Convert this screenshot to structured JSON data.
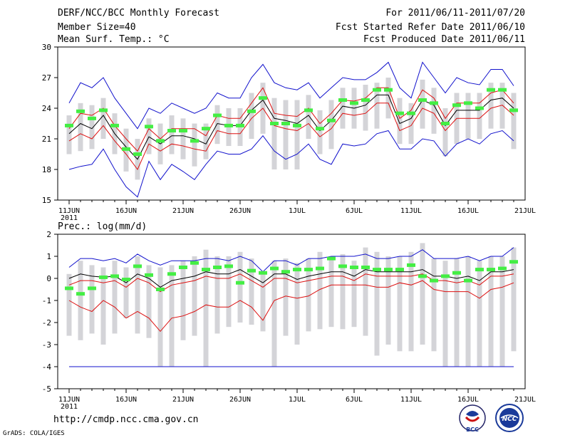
{
  "header": {
    "title": "DERF/NCC/BCC Monthly Forecast",
    "member_size": "Member Size=40",
    "variable": "Mean Surf. Temp.: °C",
    "period": "For 2011/06/11-2011/07/20",
    "fcst_started": "Fcst Started Refer Date 2011/06/10",
    "fcst_produced": "Fcst Produced Date 2011/06/11"
  },
  "colors": {
    "box": "#d4d4d8",
    "mean": "#000000",
    "spread": "#dd1111",
    "extreme": "#1111cc",
    "obs": "#44ee44",
    "floor": "#2222aa"
  },
  "chart_data": [
    {
      "type": "box",
      "title": "Mean Surf. Temp.: °C",
      "ylim": [
        15,
        30
      ],
      "yticks": [
        15,
        18,
        21,
        24,
        27,
        30
      ],
      "xtick_labels": [
        "11JUN",
        "16JUN",
        "21JUN",
        "26JUN",
        "1JUL",
        "6JUL",
        "11JUL",
        "16JUL",
        "21JUL"
      ],
      "year_label": "2011",
      "mean": [
        21.5,
        22.5,
        22.0,
        23.3,
        21.5,
        20.2,
        19.0,
        21.2,
        20.5,
        21.3,
        21.3,
        21.0,
        20.5,
        22.5,
        22.3,
        22.3,
        23.8,
        24.8,
        23.0,
        22.8,
        22.5,
        23.3,
        21.8,
        22.8,
        24.2,
        24.0,
        24.3,
        25.3,
        25.3,
        22.5,
        23.0,
        24.8,
        24.3,
        22.3,
        23.8,
        23.8,
        23.8,
        24.8,
        25.0,
        24.0
      ],
      "upper": [
        22.0,
        23.5,
        23.3,
        24.0,
        22.3,
        21.0,
        19.8,
        22.0,
        21.0,
        22.0,
        22.0,
        22.0,
        21.3,
        23.3,
        23.0,
        23.0,
        24.5,
        26.0,
        23.5,
        23.3,
        23.2,
        24.0,
        22.5,
        23.5,
        24.8,
        24.7,
        25.0,
        26.0,
        26.0,
        23.0,
        23.8,
        25.8,
        25.0,
        23.0,
        24.5,
        24.5,
        24.5,
        25.5,
        25.8,
        24.5
      ],
      "lower": [
        20.8,
        21.5,
        21.0,
        22.3,
        20.8,
        19.5,
        18.0,
        20.5,
        19.8,
        20.5,
        20.3,
        20.0,
        19.8,
        21.8,
        21.5,
        21.5,
        23.0,
        24.0,
        22.3,
        22.0,
        21.8,
        22.5,
        21.2,
        22.0,
        23.5,
        23.3,
        23.5,
        24.5,
        24.5,
        21.8,
        22.3,
        24.0,
        23.5,
        21.8,
        23.0,
        23.0,
        23.0,
        24.0,
        24.3,
        23.3
      ],
      "max": [
        24.5,
        26.5,
        26.0,
        27.0,
        25.0,
        23.5,
        22.0,
        24.0,
        23.5,
        24.5,
        24.0,
        23.5,
        24.0,
        25.5,
        25.0,
        25.0,
        27.0,
        28.3,
        26.5,
        26.0,
        25.8,
        26.5,
        25.0,
        26.0,
        27.0,
        26.8,
        26.8,
        27.5,
        28.5,
        26.0,
        25.0,
        28.5,
        27.0,
        25.5,
        27.0,
        26.5,
        26.3,
        27.8,
        27.8,
        26.2
      ],
      "min": [
        18.0,
        18.3,
        18.5,
        20.0,
        18.0,
        16.3,
        15.3,
        18.8,
        17.0,
        18.5,
        17.8,
        17.0,
        18.5,
        19.8,
        19.5,
        19.5,
        20.0,
        21.3,
        19.8,
        19.0,
        19.5,
        20.5,
        19.0,
        18.5,
        20.5,
        20.3,
        20.5,
        21.5,
        21.8,
        20.0,
        20.0,
        21.0,
        20.8,
        19.3,
        20.5,
        21.0,
        20.5,
        21.5,
        21.8,
        20.8
      ],
      "box_top": [
        23.3,
        24.5,
        24.3,
        25.0,
        23.5,
        22.0,
        21.0,
        23.0,
        22.5,
        23.3,
        23.0,
        22.5,
        22.5,
        24.3,
        24.0,
        24.0,
        25.5,
        26.5,
        25.0,
        24.8,
        24.8,
        25.3,
        23.8,
        24.8,
        26.0,
        26.0,
        26.3,
        26.5,
        27.0,
        25.0,
        24.5,
        26.8,
        26.0,
        24.0,
        25.5,
        25.5,
        25.5,
        26.5,
        26.5,
        25.5
      ],
      "box_bot": [
        19.5,
        19.8,
        20.0,
        21.0,
        19.5,
        17.8,
        17.0,
        19.5,
        18.5,
        19.5,
        19.0,
        18.3,
        19.0,
        20.5,
        20.3,
        20.3,
        21.0,
        21.5,
        18.0,
        18.0,
        18.0,
        21.0,
        19.5,
        20.0,
        22.0,
        22.0,
        21.8,
        22.0,
        23.0,
        20.5,
        20.5,
        22.0,
        21.5,
        19.3,
        20.5,
        21.0,
        21.0,
        22.0,
        22.0,
        20.0
      ],
      "obs": [
        22.3,
        23.7,
        23.0,
        23.8,
        22.3,
        20.0,
        19.5,
        22.2,
        20.8,
        21.8,
        21.8,
        20.8,
        22.0,
        23.3,
        22.3,
        22.3,
        23.7,
        25.0,
        22.5,
        22.5,
        22.3,
        23.8,
        22.0,
        22.8,
        24.8,
        24.5,
        24.8,
        25.8,
        25.8,
        23.5,
        23.5,
        24.8,
        24.5,
        22.5,
        24.3,
        24.5,
        24.0,
        25.8,
        25.8,
        23.8
      ]
    },
    {
      "type": "box",
      "title": "Prec.: log(mm/d)",
      "ylim": [
        -5,
        2
      ],
      "yticks": [
        -5,
        -4,
        -3,
        -2,
        -1,
        0,
        1,
        2
      ],
      "xtick_labels": [
        "11JUN",
        "16JUN",
        "21JUN",
        "26JUN",
        "1JUL",
        "6JUL",
        "11JUL",
        "16JUL",
        "21JUL"
      ],
      "year_label": "2011",
      "mean": [
        0.0,
        0.2,
        0.1,
        0.05,
        0.1,
        -0.2,
        0.2,
        0.0,
        -0.4,
        -0.1,
        0.0,
        0.1,
        0.3,
        0.2,
        0.2,
        0.4,
        0.1,
        -0.2,
        0.2,
        0.2,
        -0.05,
        0.1,
        0.2,
        0.3,
        0.3,
        0.1,
        0.4,
        0.3,
        0.3,
        0.3,
        0.3,
        0.4,
        0.1,
        0.1,
        0.0,
        0.1,
        -0.1,
        0.3,
        0.3,
        0.4
      ],
      "upper": [
        -0.3,
        -0.1,
        -0.1,
        -0.2,
        -0.1,
        -0.4,
        0.0,
        -0.2,
        -0.6,
        -0.3,
        -0.2,
        -0.1,
        0.1,
        0.0,
        0.0,
        0.2,
        -0.1,
        -0.4,
        0.0,
        0.0,
        -0.2,
        -0.1,
        0.0,
        0.1,
        0.1,
        -0.1,
        0.2,
        0.1,
        0.1,
        0.1,
        0.1,
        0.2,
        -0.1,
        -0.1,
        -0.2,
        -0.1,
        -0.3,
        0.1,
        0.1,
        0.2
      ],
      "lower": [
        -1.0,
        -1.3,
        -1.5,
        -1.0,
        -1.3,
        -1.8,
        -1.5,
        -1.8,
        -2.4,
        -1.8,
        -1.7,
        -1.5,
        -1.2,
        -1.3,
        -1.3,
        -1.0,
        -1.3,
        -1.9,
        -1.0,
        -0.8,
        -0.9,
        -0.8,
        -0.5,
        -0.3,
        -0.3,
        -0.3,
        -0.3,
        -0.4,
        -0.4,
        -0.2,
        -0.3,
        -0.1,
        -0.5,
        -0.6,
        -0.6,
        -0.6,
        -0.9,
        -0.5,
        -0.4,
        -0.2
      ],
      "max": [
        0.5,
        0.9,
        0.9,
        0.8,
        0.9,
        0.7,
        1.1,
        0.8,
        0.6,
        0.8,
        0.8,
        0.8,
        0.9,
        0.9,
        0.8,
        1.0,
        0.8,
        0.3,
        0.8,
        0.8,
        0.6,
        0.9,
        0.9,
        1.0,
        1.0,
        1.0,
        1.1,
        0.9,
        0.9,
        1.0,
        1.0,
        1.3,
        0.9,
        0.9,
        0.9,
        1.0,
        0.8,
        1.0,
        1.0,
        1.4
      ],
      "min": [
        -4.0,
        -4.0,
        -4.0,
        -4.0,
        -4.0,
        -4.0,
        -4.0,
        -4.0,
        -4.0,
        -4.0,
        -4.0,
        -4.0,
        -4.0,
        -4.0,
        -4.0,
        -4.0,
        -4.0,
        -4.0,
        -4.0,
        -4.0,
        -4.0,
        -4.0,
        -4.0,
        -4.0,
        -4.0,
        -4.0,
        -4.0,
        -4.0,
        -4.0,
        -4.0,
        -4.0,
        -4.0,
        -4.0,
        -4.0,
        -4.0,
        -4.0,
        -4.0,
        -4.0,
        -4.0,
        -4.0
      ],
      "box_top": [
        0.2,
        0.8,
        0.6,
        0.5,
        0.8,
        0.5,
        1.0,
        0.6,
        0.5,
        0.6,
        0.8,
        1.0,
        1.3,
        1.0,
        1.0,
        1.2,
        0.9,
        0.2,
        0.8,
        0.9,
        0.7,
        0.9,
        1.2,
        1.0,
        1.1,
        0.8,
        1.4,
        1.2,
        1.0,
        1.0,
        1.2,
        1.6,
        0.9,
        0.8,
        0.9,
        1.0,
        0.8,
        1.0,
        1.0,
        1.4
      ],
      "box_bot": [
        -2.6,
        -2.8,
        -2.5,
        -3.0,
        -2.5,
        -1.8,
        -2.5,
        -2.7,
        -4.0,
        -4.0,
        -2.8,
        -2.6,
        -4.0,
        -2.5,
        -2.2,
        -2.0,
        -2.1,
        -2.4,
        -4.0,
        -2.6,
        -3.0,
        -2.4,
        -2.3,
        -2.2,
        -2.3,
        -2.2,
        -2.6,
        -3.5,
        -3.0,
        -3.3,
        -3.3,
        -3.0,
        -3.3,
        -4.0,
        -4.0,
        -4.0,
        -4.0,
        -4.0,
        -4.0,
        -3.3
      ],
      "obs": [
        -0.45,
        -0.7,
        -0.45,
        0.05,
        0.1,
        -0.05,
        0.55,
        0.15,
        -0.5,
        0.2,
        0.5,
        0.7,
        0.4,
        0.5,
        0.55,
        -0.2,
        0.35,
        0.25,
        0.45,
        0.3,
        0.4,
        0.4,
        0.45,
        0.9,
        0.55,
        0.5,
        0.5,
        0.4,
        0.4,
        0.4,
        0.6,
        0.1,
        -0.1,
        0.1,
        0.25,
        -0.1,
        0.4,
        0.4,
        0.45,
        0.75
      ],
      "floor": -4.0
    }
  ],
  "footer": {
    "url": "http://cmdp.ncc.cma.gov.cn",
    "credit": "GrADS: COLA/IGES",
    "logo_left": "BCC",
    "logo_right": "NCC"
  }
}
